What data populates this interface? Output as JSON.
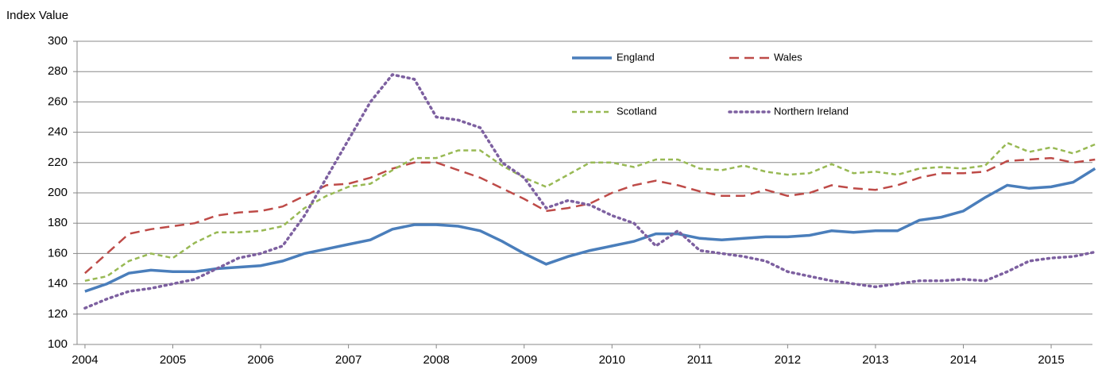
{
  "chart_data": {
    "type": "line",
    "y_label": "Index Value",
    "x": [
      2004,
      2004.25,
      2004.5,
      2004.75,
      2005,
      2005.25,
      2005.5,
      2005.75,
      2006,
      2006.25,
      2006.5,
      2006.75,
      2007,
      2007.25,
      2007.5,
      2007.75,
      2008,
      2008.25,
      2008.5,
      2008.75,
      2009,
      2009.25,
      2009.5,
      2009.75,
      2010,
      2010.25,
      2010.5,
      2010.75,
      2011,
      2011.25,
      2011.5,
      2011.75,
      2012,
      2012.25,
      2012.5,
      2012.75,
      2013,
      2013.25,
      2013.5,
      2013.75,
      2014,
      2014.25,
      2014.5,
      2014.75,
      2015,
      2015.25,
      2015.5
    ],
    "series": [
      {
        "name": "England",
        "color": "#4a7ebb",
        "dash": "solid",
        "values": [
          135,
          140,
          147,
          149,
          148,
          148,
          150,
          151,
          152,
          155,
          160,
          163,
          166,
          169,
          176,
          179,
          179,
          178,
          175,
          168,
          160,
          153,
          158,
          162,
          165,
          168,
          173,
          173,
          170,
          169,
          170,
          171,
          171,
          172,
          175,
          174,
          175,
          175,
          182,
          184,
          188,
          197,
          205,
          203,
          204,
          207,
          216
        ]
      },
      {
        "name": "Wales",
        "color": "#be4b48",
        "dash": "dashed",
        "values": [
          147,
          160,
          173,
          176,
          178,
          180,
          185,
          187,
          188,
          191,
          198,
          205,
          206,
          210,
          216,
          220,
          220,
          215,
          210,
          203,
          196,
          188,
          190,
          193,
          200,
          205,
          208,
          205,
          201,
          198,
          198,
          202,
          198,
          200,
          205,
          203,
          202,
          205,
          210,
          213,
          213,
          214,
          221,
          222,
          223,
          220,
          222
        ]
      },
      {
        "name": "Scotland",
        "color": "#98b954",
        "dash": "short-dashed",
        "values": [
          142,
          145,
          155,
          160,
          157,
          167,
          174,
          174,
          175,
          178,
          190,
          198,
          204,
          206,
          215,
          223,
          223,
          228,
          228,
          218,
          210,
          204,
          212,
          220,
          220,
          217,
          222,
          222,
          216,
          215,
          218,
          214,
          212,
          213,
          219,
          213,
          214,
          212,
          216,
          217,
          216,
          218,
          233,
          227,
          230,
          226,
          232
        ]
      },
      {
        "name": "Northern Ireland",
        "color": "#7d60a0",
        "dash": "dotted",
        "values": [
          124,
          130,
          135,
          137,
          140,
          143,
          150,
          157,
          160,
          165,
          185,
          210,
          235,
          260,
          278,
          275,
          250,
          248,
          243,
          220,
          210,
          190,
          195,
          192,
          185,
          180,
          165,
          175,
          162,
          160,
          158,
          155,
          148,
          145,
          142,
          140,
          138,
          140,
          142,
          142,
          143,
          142,
          148,
          155,
          157,
          158,
          161
        ]
      }
    ],
    "xlim": [
      2003.91,
      2015.47
    ],
    "xticks": [
      2004,
      2005,
      2006,
      2007,
      2008,
      2009,
      2010,
      2011,
      2012,
      2013,
      2014,
      2015
    ],
    "ylim": [
      100,
      300
    ],
    "yticks": [
      100,
      120,
      140,
      160,
      180,
      200,
      220,
      240,
      260,
      280,
      300
    ],
    "grid": true
  }
}
